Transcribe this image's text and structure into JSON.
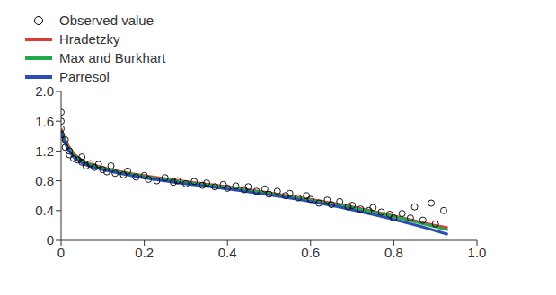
{
  "chart_data": {
    "type": "scatter",
    "xlim": [
      0,
      1
    ],
    "xticks": [
      0,
      0.2,
      0.4,
      0.6,
      0.8,
      {
        "value": 1,
        "label": "1.0"
      }
    ],
    "ylim": [
      0,
      2
    ],
    "yticks": [
      0,
      0.4,
      0.8,
      1.2,
      1.6,
      {
        "value": 2,
        "label": "2.0"
      }
    ],
    "grid": false,
    "legend": "top right",
    "series": [
      {
        "name": "Observed value",
        "type": "scatter",
        "marker": "circle",
        "color": "#000000",
        "x": [
          0,
          0,
          0,
          0,
          0.01,
          0.01,
          0.02,
          0.02,
          0.03,
          0.04,
          0.05,
          0.05,
          0.06,
          0.07,
          0.08,
          0.09,
          0.1,
          0.11,
          0.12,
          0.13,
          0.15,
          0.16,
          0.18,
          0.2,
          0.21,
          0.23,
          0.25,
          0.27,
          0.28,
          0.3,
          0.32,
          0.34,
          0.35,
          0.37,
          0.39,
          0.4,
          0.42,
          0.44,
          0.45,
          0.47,
          0.49,
          0.5,
          0.52,
          0.54,
          0.55,
          0.57,
          0.59,
          0.6,
          0.62,
          0.64,
          0.65,
          0.67,
          0.69,
          0.7,
          0.72,
          0.74,
          0.75,
          0.77,
          0.79,
          0.8,
          0.82,
          0.84,
          0.85,
          0.87,
          0.89,
          0.9,
          0.92
        ],
        "values": [
          1.72,
          1.6,
          1.5,
          1.42,
          1.35,
          1.25,
          1.2,
          1.15,
          1.1,
          1.08,
          1.05,
          1.12,
          1.0,
          1.03,
          0.98,
          1.02,
          0.95,
          0.92,
          1.0,
          0.9,
          0.88,
          0.93,
          0.85,
          0.87,
          0.82,
          0.8,
          0.84,
          0.78,
          0.8,
          0.76,
          0.79,
          0.74,
          0.77,
          0.72,
          0.75,
          0.7,
          0.73,
          0.68,
          0.72,
          0.66,
          0.69,
          0.62,
          0.66,
          0.6,
          0.63,
          0.57,
          0.6,
          0.55,
          0.5,
          0.54,
          0.48,
          0.52,
          0.45,
          0.47,
          0.42,
          0.4,
          0.44,
          0.38,
          0.35,
          0.3,
          0.36,
          0.3,
          0.45,
          0.27,
          0.5,
          0.22,
          0.4
        ]
      },
      {
        "name": "Hradetzky",
        "type": "line",
        "color": "#e03a3a",
        "x": [
          0,
          0.01,
          0.03,
          0.05,
          0.1,
          0.2,
          0.3,
          0.4,
          0.5,
          0.6,
          0.7,
          0.8,
          0.9,
          0.93
        ],
        "values": [
          1.5,
          1.35,
          1.17,
          1.08,
          0.98,
          0.87,
          0.79,
          0.72,
          0.64,
          0.55,
          0.45,
          0.33,
          0.2,
          0.17
        ]
      },
      {
        "name": "Max and Burkhart",
        "type": "line",
        "color": "#22a84a",
        "x": [
          0,
          0.01,
          0.03,
          0.05,
          0.1,
          0.2,
          0.3,
          0.4,
          0.5,
          0.6,
          0.7,
          0.8,
          0.9,
          0.93
        ],
        "values": [
          1.48,
          1.33,
          1.15,
          1.07,
          0.97,
          0.86,
          0.78,
          0.71,
          0.63,
          0.54,
          0.44,
          0.32,
          0.18,
          0.14
        ]
      },
      {
        "name": "Parresol",
        "type": "line",
        "color": "#2a4fb0",
        "x": [
          0,
          0.01,
          0.03,
          0.05,
          0.1,
          0.2,
          0.3,
          0.4,
          0.5,
          0.6,
          0.7,
          0.8,
          0.9,
          0.93
        ],
        "values": [
          1.45,
          1.3,
          1.12,
          1.04,
          0.95,
          0.84,
          0.76,
          0.69,
          0.61,
          0.52,
          0.41,
          0.28,
          0.13,
          0.08
        ]
      }
    ]
  }
}
